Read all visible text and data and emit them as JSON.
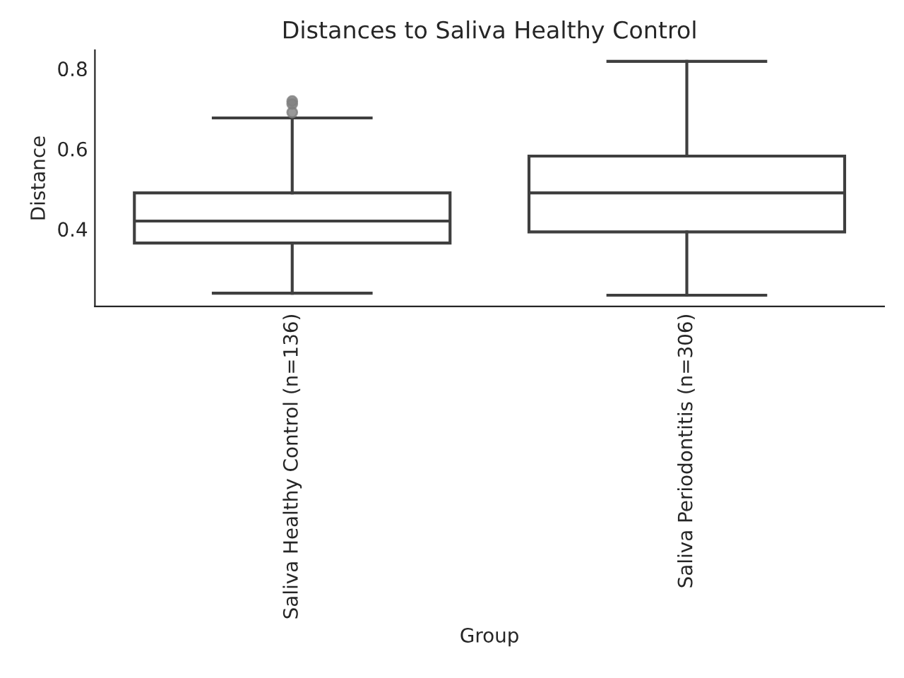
{
  "chart_data": {
    "type": "box",
    "title": "Distances to Saliva Healthy Control",
    "xlabel": "Group",
    "ylabel": "Distance",
    "categories": [
      "Saliva Healthy Control (n=136)",
      "Saliva Periodontitis (n=306)"
    ],
    "boxes": [
      {
        "low": 0.24,
        "q1": 0.365,
        "median": 0.42,
        "q3": 0.49,
        "high": 0.677,
        "outliers": [
          0.719,
          0.712,
          0.691
        ]
      },
      {
        "low": 0.235,
        "q1": 0.393,
        "median": 0.49,
        "q3": 0.582,
        "high": 0.818
      }
    ],
    "color": "#3f3f3f",
    "ylim": [
      0.207,
      0.846
    ],
    "yticks": [
      0.4,
      0.6,
      0.8
    ],
    "grid": false,
    "legend": false
  }
}
